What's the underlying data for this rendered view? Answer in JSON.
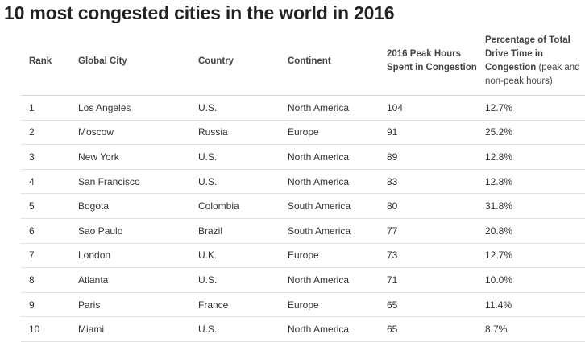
{
  "title": "10 most congested cities in the world in 2016",
  "table": {
    "headers": {
      "rank": "Rank",
      "city": "Global City",
      "country": "Country",
      "continent": "Continent",
      "peak_hours": "2016 Peak Hours Spent in Congestion",
      "percentage_main": "Percentage of Total Drive Time in Congestion",
      "percentage_note": "(peak and non-peak hours)"
    },
    "rows": [
      {
        "rank": "1",
        "city": "Los Angeles",
        "country": "U.S.",
        "continent": "North America",
        "hours": "104",
        "pct": "12.7%"
      },
      {
        "rank": "2",
        "city": "Moscow",
        "country": "Russia",
        "continent": "Europe",
        "hours": "91",
        "pct": "25.2%"
      },
      {
        "rank": "3",
        "city": "New York",
        "country": "U.S.",
        "continent": "North America",
        "hours": "89",
        "pct": "12.8%"
      },
      {
        "rank": "4",
        "city": "San Francisco",
        "country": "U.S.",
        "continent": "North America",
        "hours": "83",
        "pct": "12.8%"
      },
      {
        "rank": "5",
        "city": "Bogota",
        "country": "Colombia",
        "continent": "South America",
        "hours": "80",
        "pct": "31.8%"
      },
      {
        "rank": "6",
        "city": "Sao Paulo",
        "country": "Brazil",
        "continent": "South America",
        "hours": "77",
        "pct": "20.8%"
      },
      {
        "rank": "7",
        "city": "London",
        "country": "U.K.",
        "continent": "Europe",
        "hours": "73",
        "pct": "12.7%"
      },
      {
        "rank": "8",
        "city": "Atlanta",
        "country": "U.S.",
        "continent": "North America",
        "hours": "71",
        "pct": "10.0%"
      },
      {
        "rank": "9",
        "city": "Paris",
        "country": "France",
        "continent": "Europe",
        "hours": "65",
        "pct": "11.4%"
      },
      {
        "rank": "10",
        "city": "Miami",
        "country": "U.S.",
        "continent": "North America",
        "hours": "65",
        "pct": "8.7%"
      }
    ]
  }
}
